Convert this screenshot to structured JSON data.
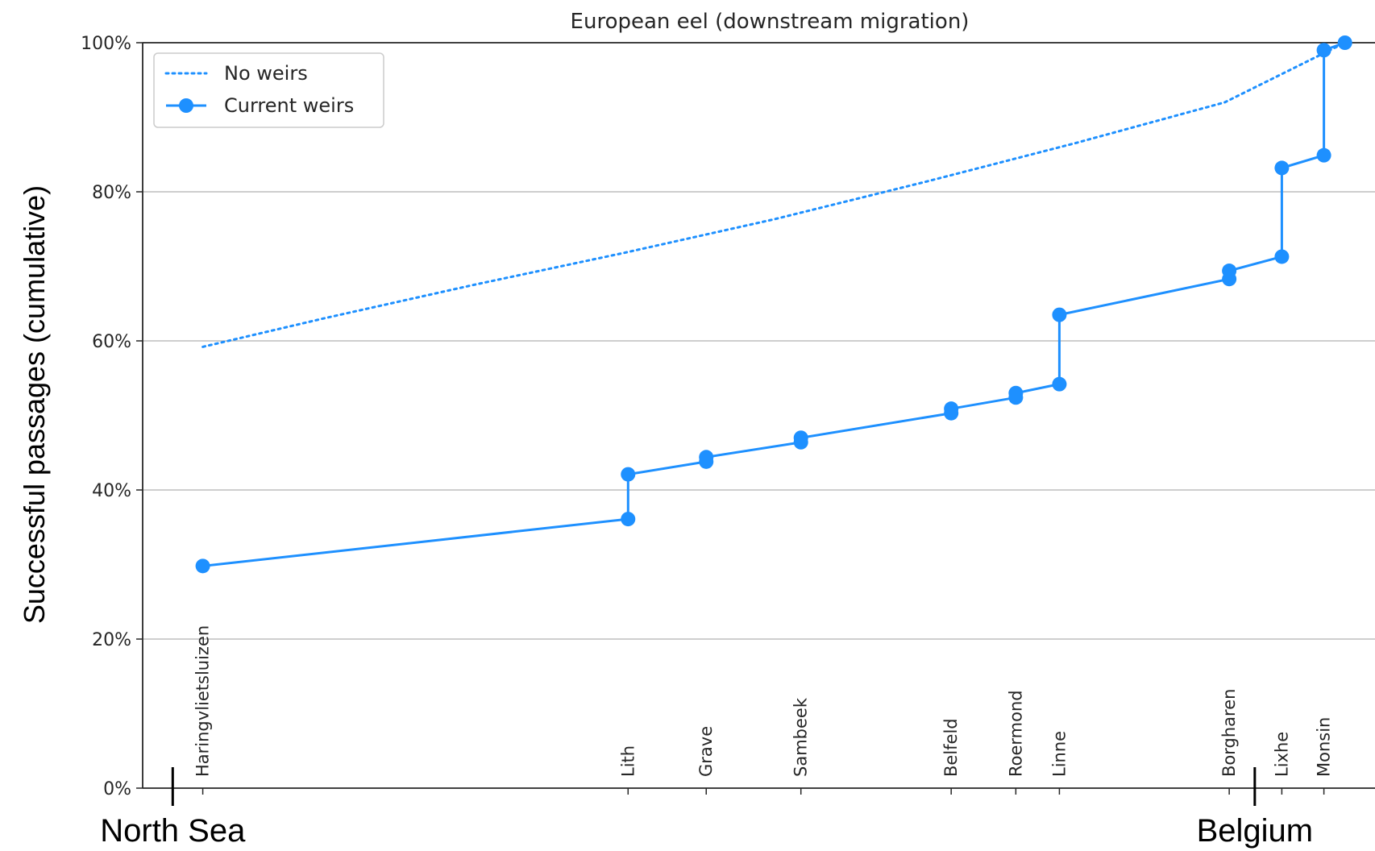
{
  "chart_data": {
    "type": "line",
    "title": "European eel (downstream migration)",
    "ylabel": "Successful passages (cumulative)",
    "ylim": [
      0,
      100
    ],
    "yticks": [
      "0%",
      "20%",
      "40%",
      "60%",
      "80%",
      "100%"
    ],
    "grid": "horizontal",
    "legend_position": "top-left",
    "x_range": [
      -2,
      80
    ],
    "edge_labels": [
      {
        "label": "North Sea",
        "x": 0
      },
      {
        "label": "Belgium",
        "x": 72
      }
    ],
    "weirs": [
      {
        "label": "Haringvlietsluizen",
        "x": 2.0
      },
      {
        "label": "Lith",
        "x": 30.3
      },
      {
        "label": "Grave",
        "x": 35.5
      },
      {
        "label": "Sambeek",
        "x": 41.8
      },
      {
        "label": "Belfeld",
        "x": 51.8
      },
      {
        "label": "Roermond",
        "x": 56.1
      },
      {
        "label": "Linne",
        "x": 59.0
      },
      {
        "label": "Borgharen",
        "x": 70.3
      },
      {
        "label": "Lixhe",
        "x": 73.8
      },
      {
        "label": "Monsin",
        "x": 76.6
      }
    ],
    "series": [
      {
        "name": "No weirs",
        "style": "dotted",
        "color": "#1e90ff",
        "x": [
          2.0,
          10,
          20,
          30,
          40,
          50,
          60,
          70,
          78.0
        ],
        "y": [
          59.2,
          63.0,
          67.5,
          71.8,
          76.3,
          81.3,
          86.5,
          92.0,
          100.0
        ]
      },
      {
        "name": "Current weirs",
        "style": "solid-markers",
        "color": "#1e90ff",
        "x": [
          2.0,
          30.3,
          30.3,
          35.5,
          35.5,
          41.8,
          41.8,
          51.8,
          51.8,
          56.1,
          56.1,
          59.0,
          59.0,
          70.3,
          70.3,
          73.8,
          73.8,
          76.6,
          76.6,
          78.0
        ],
        "y": [
          29.8,
          36.1,
          42.1,
          43.8,
          44.4,
          46.4,
          47.0,
          50.3,
          50.9,
          52.4,
          53.0,
          54.2,
          63.5,
          68.3,
          69.4,
          71.3,
          83.2,
          84.9,
          99.0,
          100.0
        ]
      }
    ]
  }
}
